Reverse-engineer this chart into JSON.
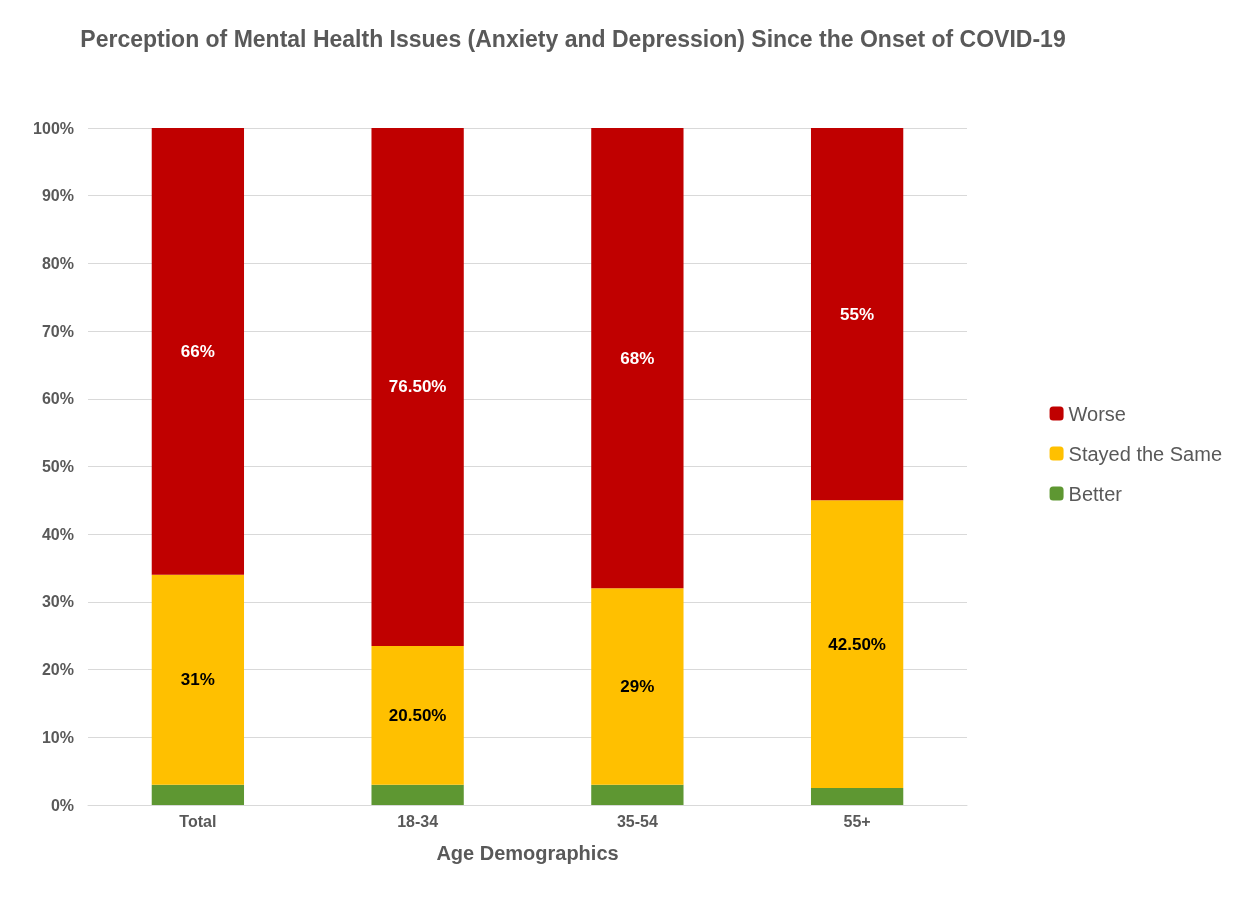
{
  "chart_data": {
    "type": "bar",
    "title": "Perception of Mental Health Issues (Anxiety and Depression) Since the Onset of COVID-19",
    "xlabel": "Age Demographics",
    "categories": [
      "Total",
      "18-34",
      "35-54",
      "55+"
    ],
    "stacked": true,
    "series": [
      {
        "name": "Better",
        "color": "#5e9732",
        "values": [
          3,
          3,
          3,
          2.5
        ]
      },
      {
        "name": "Stayed the Same",
        "color": "#ffc000",
        "values": [
          31,
          20.5,
          29,
          42.5
        ],
        "value_labels": [
          "31%",
          "20.50%",
          "29%",
          "42.50%"
        ]
      },
      {
        "name": "Worse",
        "color": "#c00000",
        "values": [
          66,
          76.5,
          68,
          55
        ],
        "value_labels": [
          "66%",
          "76.50%",
          "68%",
          "55%"
        ]
      }
    ],
    "ylim": [
      0,
      100
    ],
    "yticks": [
      {
        "value": 0,
        "label": "0%"
      },
      {
        "value": 10,
        "label": "10%"
      },
      {
        "value": 20,
        "label": "20%"
      },
      {
        "value": 30,
        "label": "30%"
      },
      {
        "value": 40,
        "label": "40%"
      },
      {
        "value": 50,
        "label": "50%"
      },
      {
        "value": 60,
        "label": "60%"
      },
      {
        "value": 70,
        "label": "70%"
      },
      {
        "value": 80,
        "label": "80%"
      },
      {
        "value": 90,
        "label": "90%"
      },
      {
        "value": 100,
        "label": "100%"
      }
    ],
    "grid": "y",
    "legend": "right"
  }
}
